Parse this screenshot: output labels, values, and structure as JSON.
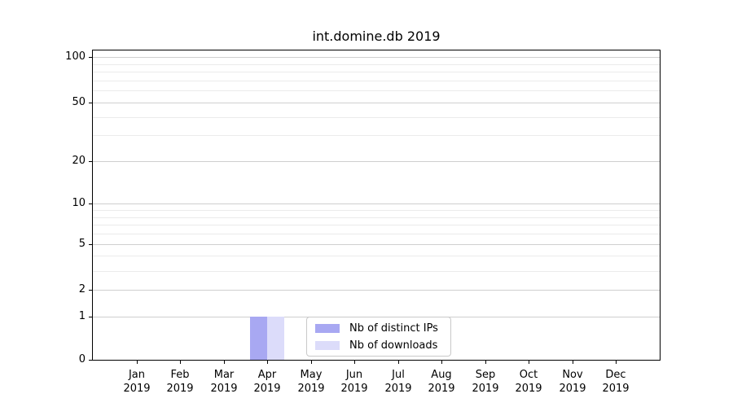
{
  "chart_data": {
    "type": "bar",
    "title": "int.domine.db 2019",
    "categories": [
      "Jan 2019",
      "Feb 2019",
      "Mar 2019",
      "Apr 2019",
      "May 2019",
      "Jun 2019",
      "Jul 2019",
      "Aug 2019",
      "Sep 2019",
      "Oct 2019",
      "Nov 2019",
      "Dec 2019"
    ],
    "series": [
      {
        "name": "Nb of distinct IPs",
        "color": "#a8a8f2",
        "values": [
          0,
          0,
          0,
          1,
          0,
          0,
          0,
          0,
          0,
          0,
          0,
          0
        ]
      },
      {
        "name": "Nb of downloads",
        "color": "#dcdcfa",
        "values": [
          0,
          0,
          0,
          1,
          0,
          0,
          0,
          0,
          0,
          0,
          0,
          0
        ]
      }
    ],
    "y_axis": {
      "scale": "log1p",
      "ticks": [
        0,
        1,
        2,
        5,
        10,
        20,
        50,
        100
      ],
      "minor_gridlines": [
        3,
        4,
        6,
        7,
        8,
        9,
        30,
        40,
        60,
        70,
        80,
        90
      ],
      "range": [
        0,
        110
      ]
    },
    "legend": {
      "position": "lower center"
    },
    "grid": "horizontal-only",
    "colors": {
      "background": "#ffffff",
      "spine": "#000000",
      "text": "#000000",
      "major_grid": "#cfcfcf",
      "minor_grid": "#ebebeb",
      "legend_border": "#c9c9c9"
    }
  }
}
